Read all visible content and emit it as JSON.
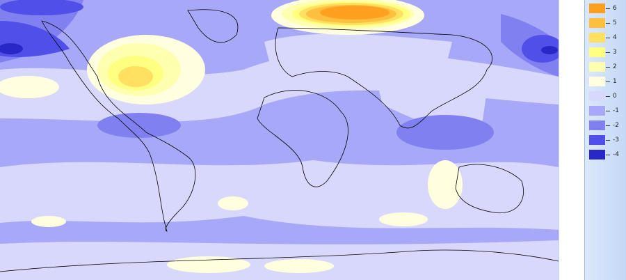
{
  "map": {
    "levels": [
      {
        "label": "6",
        "color": "#ffa020"
      },
      {
        "label": "5",
        "color": "#ffc040"
      },
      {
        "label": "4",
        "color": "#ffe060"
      },
      {
        "label": "3",
        "color": "#ffff80"
      },
      {
        "label": "2",
        "color": "#ffffb0"
      },
      {
        "label": "1",
        "color": "#ffffe0"
      },
      {
        "label": "0",
        "color": "#d8d8fc"
      },
      {
        "label": "-1",
        "color": "#a8a8f8"
      },
      {
        "label": "-2",
        "color": "#8080f0"
      },
      {
        "label": "-3",
        "color": "#5050e8"
      },
      {
        "label": "-4",
        "color": "#2828c8"
      }
    ]
  }
}
